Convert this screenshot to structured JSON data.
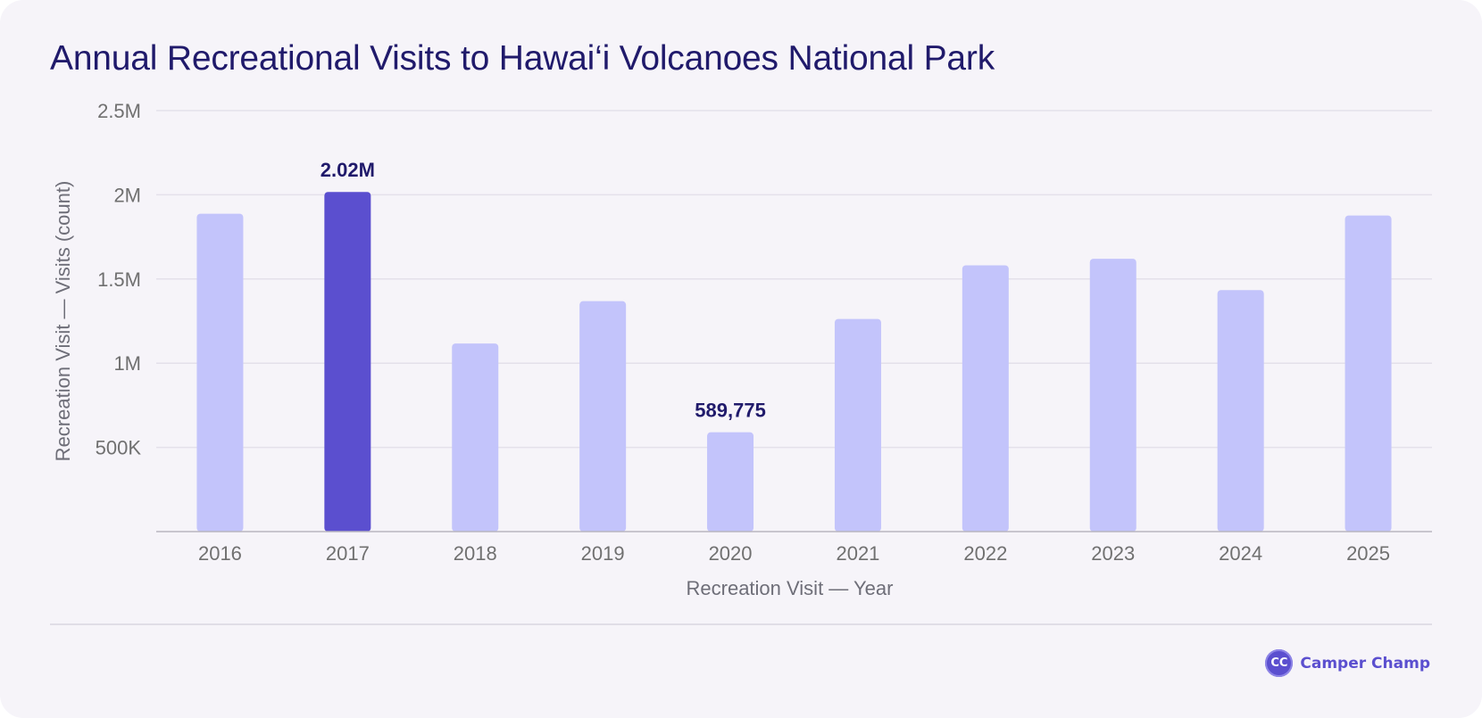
{
  "chart_data": {
    "type": "bar",
    "title": "Annual Recreational Visits to Hawai‘i Volcanoes National Park",
    "xlabel": "Recreation Visit — Year",
    "ylabel": "Recreation Visit — Visits (count)",
    "categories": [
      "2016",
      "2017",
      "2018",
      "2019",
      "2020",
      "2021",
      "2022",
      "2023",
      "2024",
      "2025"
    ],
    "values": [
      1887580,
      2016702,
      1116891,
      1368376,
      589775,
      1262747,
      1581216,
      1620294,
      1434000,
      1877000
    ],
    "ylim": [
      0,
      2500000
    ],
    "yticks": [
      500000,
      1000000,
      1500000,
      2000000,
      2500000
    ],
    "ytick_labels": [
      "500K",
      "1M",
      "1.5M",
      "2M",
      "2.5M"
    ],
    "highlight_index": 1,
    "annotations": [
      {
        "index": 1,
        "text": "2.02M"
      },
      {
        "index": 4,
        "text": "589,775"
      }
    ],
    "grid": true,
    "colors": {
      "bar": "#c3c4fb",
      "highlight": "#5b4fcf",
      "annotation": "#201a6b",
      "grid": "#e4e1ea",
      "axis": "#b8b5bf",
      "tick_text": "#707070",
      "label_text": "#6e6e78"
    }
  },
  "brand": {
    "logo_text": "CC",
    "name": "Camper Champ",
    "logo_icon": "camper-champ-logo-icon"
  }
}
